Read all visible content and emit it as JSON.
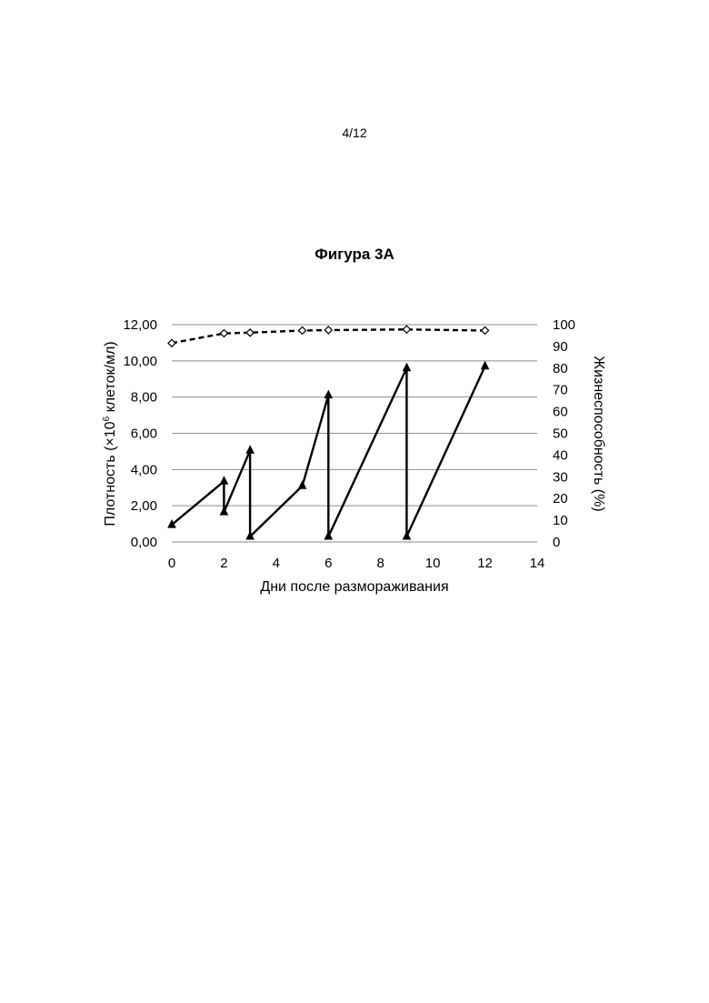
{
  "page": {
    "number": "4/12",
    "figure_title": "Фигура 3А"
  },
  "chart_data": {
    "type": "line",
    "xlabel": "Дни после размораживания",
    "ylabel_left_prefix": "Плотность (×10",
    "ylabel_left_superscript": "6",
    "ylabel_left_suffix": " клеток/мл)",
    "ylabel_right": "Жизнеспособность (%)",
    "xlim": [
      0,
      14
    ],
    "x_ticks": [
      "0",
      "2",
      "4",
      "6",
      "8",
      "10",
      "12",
      "14"
    ],
    "ylim_left": [
      0,
      12
    ],
    "y_ticks_left": [
      "0,00",
      "2,00",
      "4,00",
      "6,00",
      "8,00",
      "10,00",
      "12,00"
    ],
    "ylim_right": [
      0,
      100
    ],
    "y_ticks_right": [
      "0",
      "10",
      "20",
      "30",
      "40",
      "50",
      "60",
      "70",
      "80",
      "90",
      "100"
    ],
    "grid": "horizontal",
    "series": [
      {
        "axis": "left",
        "style": "solid",
        "marker": "triangle",
        "color": "#000000",
        "x": [
          0,
          2,
          2,
          3,
          3,
          5,
          6,
          6,
          9,
          9,
          12
        ],
        "values": [
          0.95,
          3.35,
          1.65,
          5.05,
          0.3,
          3.1,
          8.1,
          0.3,
          9.6,
          0.3,
          9.7
        ]
      },
      {
        "axis": "right",
        "style": "dashed",
        "marker": "diamond",
        "color": "#000000",
        "x": [
          0,
          2,
          3,
          5,
          6,
          9,
          12
        ],
        "values": [
          91.5,
          96,
          96.3,
          97.3,
          97.5,
          97.8,
          97.3
        ]
      }
    ]
  }
}
